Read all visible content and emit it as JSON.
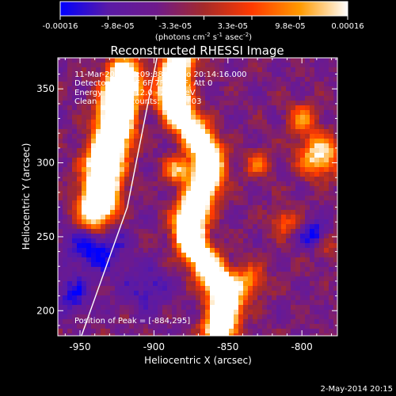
{
  "chart_data": {
    "type": "heatmap",
    "title": "Reconstructed RHESSI Image",
    "xlabel": "Heliocentric X (arcsec)",
    "ylabel": "Heliocentric Y (arcsec)",
    "xlim": [
      -965,
      -776
    ],
    "ylim": [
      183,
      371
    ],
    "x_ticks": [
      -950,
      -900,
      -850,
      -800
    ],
    "y_ticks": [
      200,
      250,
      300,
      350
    ],
    "colorbar": {
      "ticks": [
        "-0.00016",
        "-9.8e-05",
        "-3.3e-05",
        "3.3e-05",
        "9.8e-05",
        "0.00016"
      ],
      "units_line_1": "(photons cm",
      "units_exp_1": "-2",
      "units_line_2": " s",
      "units_exp_2": "-1",
      "units_line_3": " asec",
      "units_exp_3": "-2",
      "units_close": ")",
      "colors": [
        "#0000ff",
        "#5a1aa6",
        "#6e1a8c",
        "#a52a2a",
        "#ff3a00",
        "#ff9a00",
        "#ffffff"
      ],
      "range": [
        -0.00016,
        0.00016
      ]
    },
    "info_lines": [
      "11-Mar-2012 20:09:38.000 to 20:14:16.000",
      "Detectors: 3F 5F 6F 7F 8F 9F, Att 0",
      "Energy Range: 12.0 - 25.0 keV",
      "Clean     Total counts: 3.38E+03"
    ],
    "peak_label": "Position of Peak = [-884,295]",
    "peak": [
      -884,
      295
    ],
    "limb_line": [
      [
        -949,
        183
      ],
      [
        -918,
        270
      ],
      [
        -898,
        371
      ]
    ]
  },
  "footer": {
    "date": "2-May-2014 20:15"
  }
}
